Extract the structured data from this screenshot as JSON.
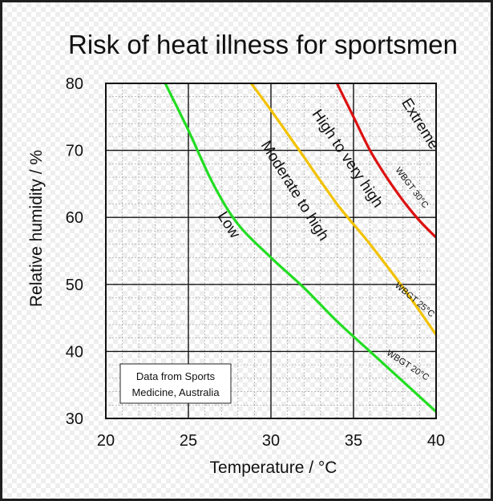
{
  "chart_data": {
    "type": "line",
    "title": "Risk of heat illness for sportsmen",
    "xlabel": "Temperature / °C",
    "ylabel": "Relative humidity / %",
    "xlim": [
      20,
      40
    ],
    "ylim": [
      30,
      80
    ],
    "xticks": [
      20,
      25,
      30,
      35,
      40
    ],
    "yticks": [
      30,
      40,
      50,
      60,
      70,
      80
    ],
    "grid": true,
    "series": [
      {
        "name": "WBGT 20°C",
        "color": "#22dd22",
        "points": [
          [
            23.6,
            80
          ],
          [
            25,
            73
          ],
          [
            26.5,
            65
          ],
          [
            28,
            59
          ],
          [
            30,
            54
          ],
          [
            32,
            49.5
          ],
          [
            34,
            44.5
          ],
          [
            36,
            40
          ],
          [
            38,
            35.5
          ],
          [
            40,
            31
          ]
        ]
      },
      {
        "name": "WBGT 25°C",
        "color": "#f2c200",
        "points": [
          [
            28.8,
            80
          ],
          [
            30,
            76
          ],
          [
            32,
            69
          ],
          [
            34,
            62
          ],
          [
            36,
            56
          ],
          [
            38,
            49.5
          ],
          [
            40,
            42.5
          ]
        ]
      },
      {
        "name": "WBGT 30°C",
        "color": "#dd1111",
        "points": [
          [
            34,
            80
          ],
          [
            35,
            75
          ],
          [
            36,
            70
          ],
          [
            37,
            66
          ],
          [
            38,
            62.5
          ],
          [
            39,
            59.5
          ],
          [
            40,
            57
          ]
        ]
      }
    ],
    "zone_labels": [
      "Low",
      "Moderate to high",
      "High to very high",
      "Extreme"
    ],
    "annotation": "Data from Sports Medicine, Australia"
  },
  "note_lines": [
    "Data from Sports",
    "Medicine, Australia"
  ]
}
